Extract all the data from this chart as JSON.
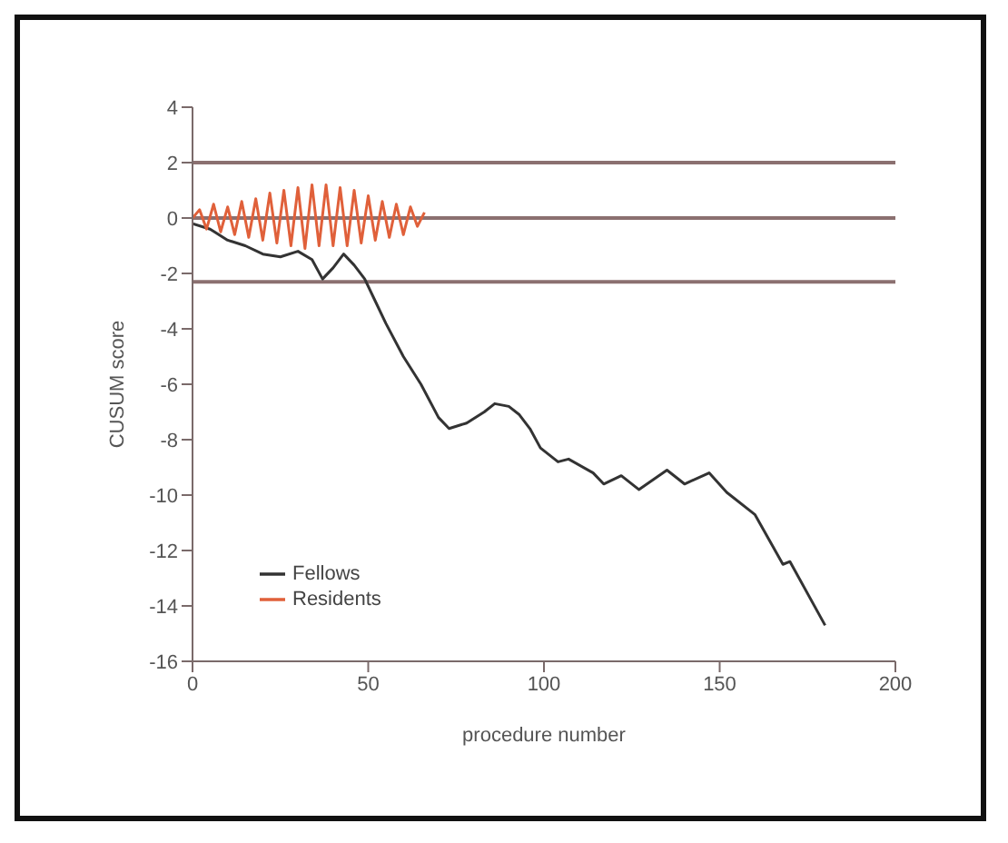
{
  "chart_data": {
    "type": "line",
    "xlabel": "procedure number",
    "ylabel": "CUSUM score",
    "xlim": [
      0,
      200
    ],
    "xticks": [
      0,
      50,
      100,
      150,
      200
    ],
    "ylim": [
      -16,
      4
    ],
    "yticks": [
      4,
      2,
      0,
      -2,
      -4,
      -6,
      -8,
      -10,
      -12,
      -14,
      -16
    ],
    "grid": false,
    "legend": "bottom left",
    "marker": "none",
    "line_style": "solid",
    "ref_lines": [
      {
        "axis": "y",
        "value": 2,
        "color": "#8b7070"
      },
      {
        "axis": "y",
        "value": 0,
        "color": "#8b7070"
      },
      {
        "axis": "y",
        "value": -2.3,
        "color": "#8b7070"
      }
    ],
    "series": [
      {
        "name": "Fellows",
        "color": "#333333",
        "x": [
          0,
          5,
          10,
          15,
          20,
          25,
          30,
          34,
          37,
          40,
          43,
          46,
          49,
          52,
          55,
          60,
          65,
          70,
          73,
          78,
          83,
          86,
          90,
          93,
          96,
          99,
          104,
          107,
          114,
          117,
          122,
          127,
          135,
          140,
          147,
          152,
          160,
          168,
          170,
          180
        ],
        "values": [
          -0.2,
          -0.4,
          -0.8,
          -1.0,
          -1.3,
          -1.4,
          -1.2,
          -1.5,
          -2.2,
          -1.8,
          -1.3,
          -1.7,
          -2.2,
          -3.0,
          -3.8,
          -5.0,
          -6.0,
          -7.2,
          -7.6,
          -7.4,
          -7.0,
          -6.7,
          -6.8,
          -7.1,
          -7.6,
          -8.3,
          -8.8,
          -8.7,
          -9.2,
          -9.6,
          -9.3,
          -9.8,
          -9.1,
          -9.6,
          -9.2,
          -9.9,
          -10.7,
          -12.5,
          -12.4,
          -14.7
        ]
      },
      {
        "name": "Residents",
        "color": "#e0603a",
        "x": [
          0,
          2,
          4,
          6,
          8,
          10,
          12,
          14,
          16,
          18,
          20,
          22,
          24,
          26,
          28,
          30,
          32,
          34,
          36,
          38,
          40,
          42,
          44,
          46,
          48,
          50,
          52,
          54,
          56,
          58,
          60,
          62,
          64,
          66
        ],
        "values": [
          0,
          0.3,
          -0.4,
          0.5,
          -0.5,
          0.4,
          -0.6,
          0.6,
          -0.7,
          0.7,
          -0.8,
          0.9,
          -0.9,
          1.0,
          -1.0,
          1.1,
          -1.1,
          1.2,
          -1.0,
          1.2,
          -1.0,
          1.1,
          -1.0,
          1.0,
          -0.9,
          0.8,
          -0.8,
          0.6,
          -0.7,
          0.5,
          -0.6,
          0.4,
          -0.3,
          0.2
        ]
      }
    ]
  }
}
